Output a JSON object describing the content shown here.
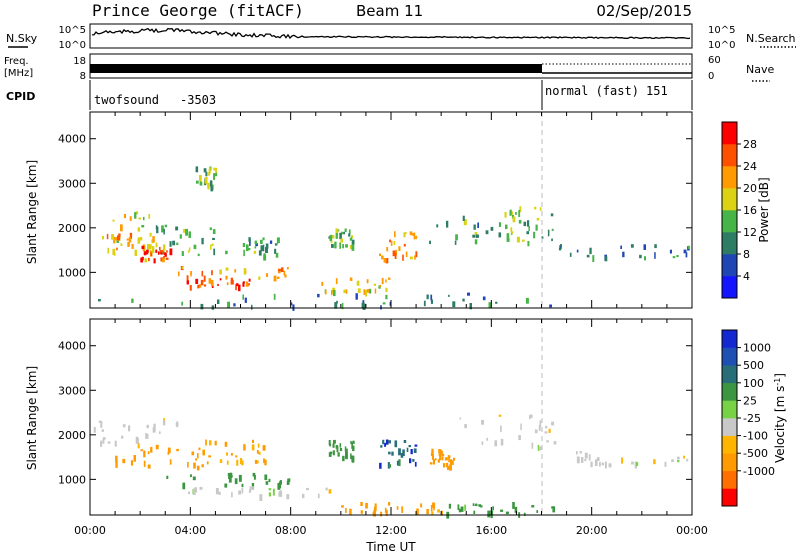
{
  "header": {
    "station": "Prince George (fitACF)",
    "beam": "Beam 11",
    "date": "02/Sep/2015"
  },
  "panels": {
    "nsky": {
      "label": "N.Sky",
      "ticks": [
        "10^5",
        "10^0"
      ]
    },
    "nsearch": {
      "label": "N.Search",
      "ticks": [
        "10^5",
        "10^0"
      ]
    },
    "freq": {
      "label_line1": "Freq.",
      "label_line2": "[MHz]",
      "ticks": [
        "18",
        "8"
      ]
    },
    "nave": {
      "label": "Nave",
      "ticks": [
        "60",
        "0"
      ]
    },
    "cpid": {
      "label": "CPID",
      "segments": [
        {
          "name": "twofsound",
          "id": "-3503",
          "start_hour": 0,
          "end_hour": 18
        },
        {
          "name": "normal (fast)",
          "id": "151",
          "start_hour": 18,
          "end_hour": 24
        }
      ]
    }
  },
  "colors": {
    "power": [
      "#1414ff",
      "#1e46b4",
      "#2d7d64",
      "#46b446",
      "#dcd214",
      "#ff9b00",
      "#ff5000",
      "#ff0000"
    ],
    "velocity": [
      "#ff0000",
      "#ff6e00",
      "#ff9b00",
      "#ffb400",
      "#c8c8c8",
      "#78d246",
      "#3c9641",
      "#286e78",
      "#1e50b4",
      "#1428d2"
    ]
  },
  "chart_data": [
    {
      "type": "heatmap",
      "title": "",
      "xlabel": "",
      "ylabel": "Slant Range [km]",
      "xlim": [
        0,
        24
      ],
      "ylim": [
        200,
        4600
      ],
      "yticks": [
        "1000",
        "2000",
        "3000",
        "4000"
      ],
      "colorbar": {
        "label": "Power [dB]",
        "range": [
          0,
          32
        ],
        "ticks": [
          "4",
          "8",
          "12",
          "16",
          "20",
          "24",
          "28"
        ]
      },
      "echo_regions": [
        {
          "x0": 0.1,
          "x1": 3.5,
          "y0": 1300,
          "y1": 2400,
          "value": 17
        },
        {
          "x0": 0.5,
          "x1": 2.5,
          "y0": 1500,
          "y1": 1900,
          "value": 22
        },
        {
          "x0": 2.0,
          "x1": 3.2,
          "y0": 1300,
          "y1": 1600,
          "value": 28
        },
        {
          "x0": 2.5,
          "x1": 5.5,
          "y0": 1400,
          "y1": 2100,
          "value": 14
        },
        {
          "x0": 4.2,
          "x1": 5.0,
          "y0": 2900,
          "y1": 3400,
          "value": 14
        },
        {
          "x0": 3.5,
          "x1": 8.0,
          "y0": 900,
          "y1": 1150,
          "value": 22
        },
        {
          "x0": 3.8,
          "x1": 6.5,
          "y0": 700,
          "y1": 900,
          "value": 27
        },
        {
          "x0": 6.0,
          "x1": 7.5,
          "y0": 1400,
          "y1": 1800,
          "value": 12
        },
        {
          "x0": 9.5,
          "x1": 10.5,
          "y0": 1600,
          "y1": 2000,
          "value": 14
        },
        {
          "x0": 9.2,
          "x1": 12.0,
          "y0": 600,
          "y1": 900,
          "value": 19
        },
        {
          "x0": 11.5,
          "x1": 13.0,
          "y0": 1300,
          "y1": 2000,
          "value": 21
        },
        {
          "x0": 13.5,
          "x1": 17.5,
          "y0": 1700,
          "y1": 2300,
          "value": 12
        },
        {
          "x0": 16.5,
          "x1": 18.5,
          "y0": 1700,
          "y1": 2500,
          "value": 15
        },
        {
          "x0": 18.5,
          "x1": 24.0,
          "y0": 1350,
          "y1": 1650,
          "value": 9
        },
        {
          "x0": 0.0,
          "x1": 18.5,
          "y0": 250,
          "y1": 550,
          "value": 10
        }
      ]
    },
    {
      "type": "heatmap",
      "title": "",
      "xlabel": "Time UT",
      "ylabel": "Slant Range [km]",
      "xlim": [
        0,
        24
      ],
      "ylim": [
        200,
        4600
      ],
      "xticks": [
        "00:00",
        "04:00",
        "08:00",
        "12:00",
        "16:00",
        "20:00",
        "00:00"
      ],
      "yticks": [
        "1000",
        "2000",
        "3000",
        "4000"
      ],
      "colorbar": {
        "label": "Velocity [m s^-1]",
        "ticks": [
          "1000",
          "500",
          "100",
          "25",
          "-25",
          "-100",
          "-500",
          "-1000"
        ]
      },
      "echo_regions": [
        {
          "x0": 0.1,
          "x1": 3.5,
          "y0": 1800,
          "y1": 2400,
          "value": 0
        },
        {
          "x0": 1.0,
          "x1": 4.5,
          "y0": 1300,
          "y1": 1800,
          "value": -300
        },
        {
          "x0": 4.5,
          "x1": 7.0,
          "y0": 1400,
          "y1": 1900,
          "value": -120
        },
        {
          "x0": 3.0,
          "x1": 8.0,
          "y0": 900,
          "y1": 1150,
          "value": 150
        },
        {
          "x0": 3.5,
          "x1": 10.0,
          "y0": 650,
          "y1": 850,
          "value": 0
        },
        {
          "x0": 9.5,
          "x1": 10.5,
          "y0": 1500,
          "y1": 1900,
          "value": 300
        },
        {
          "x0": 11.5,
          "x1": 13.0,
          "y0": 1300,
          "y1": 1900,
          "value": 800
        },
        {
          "x0": 13.5,
          "x1": 14.5,
          "y0": 1300,
          "y1": 1700,
          "value": -300
        },
        {
          "x0": 14.5,
          "x1": 18.5,
          "y0": 1700,
          "y1": 2500,
          "value": 0
        },
        {
          "x0": 18.5,
          "x1": 24.0,
          "y0": 1350,
          "y1": 1650,
          "value": 0
        },
        {
          "x0": 10.0,
          "x1": 14.0,
          "y0": 250,
          "y1": 500,
          "value": -150
        },
        {
          "x0": 14.0,
          "x1": 18.5,
          "y0": 250,
          "y1": 500,
          "value": 150
        }
      ]
    }
  ]
}
